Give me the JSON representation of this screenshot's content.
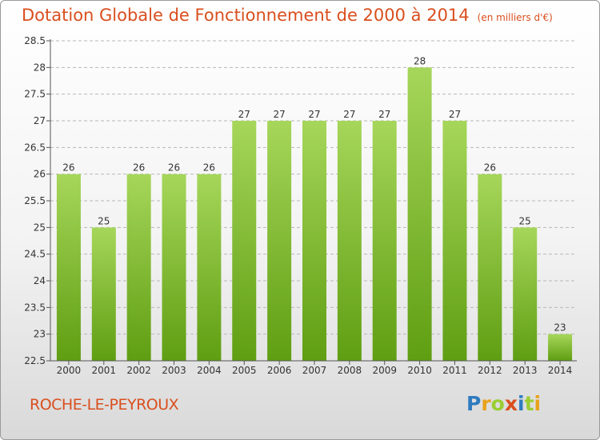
{
  "header": {
    "title": "Dotation Globale de Fonctionnement de 2000 à 2014",
    "subtitle": "(en milliers d'€)"
  },
  "footer": {
    "commune": "ROCHE-LE-PEYROUX",
    "logo": "Proxiti"
  },
  "colors": {
    "bar_top": "#a6d65a",
    "bar_bottom": "#5f9e12",
    "title": "#d94f1e",
    "grid": "#b8b8b8"
  },
  "chart_data": {
    "type": "bar",
    "title": "Dotation Globale de Fonctionnement de 2000 à 2014",
    "subtitle": "(en milliers d'€)",
    "categories": [
      "2000",
      "2001",
      "2002",
      "2003",
      "2004",
      "2005",
      "2006",
      "2007",
      "2008",
      "2009",
      "2010",
      "2011",
      "2012",
      "2013",
      "2014"
    ],
    "values": [
      26,
      25,
      26,
      26,
      26,
      27,
      27,
      27,
      27,
      27,
      28,
      27,
      26,
      25,
      23
    ],
    "ylim": [
      22.5,
      28.5
    ],
    "yticks": [
      "22.5",
      "23",
      "23.5",
      "24",
      "24.5",
      "25",
      "25.5",
      "26",
      "26.5",
      "27",
      "27.5",
      "28",
      "28.5"
    ],
    "xlabel": "",
    "ylabel": "",
    "grid": "dashed horizontal"
  }
}
